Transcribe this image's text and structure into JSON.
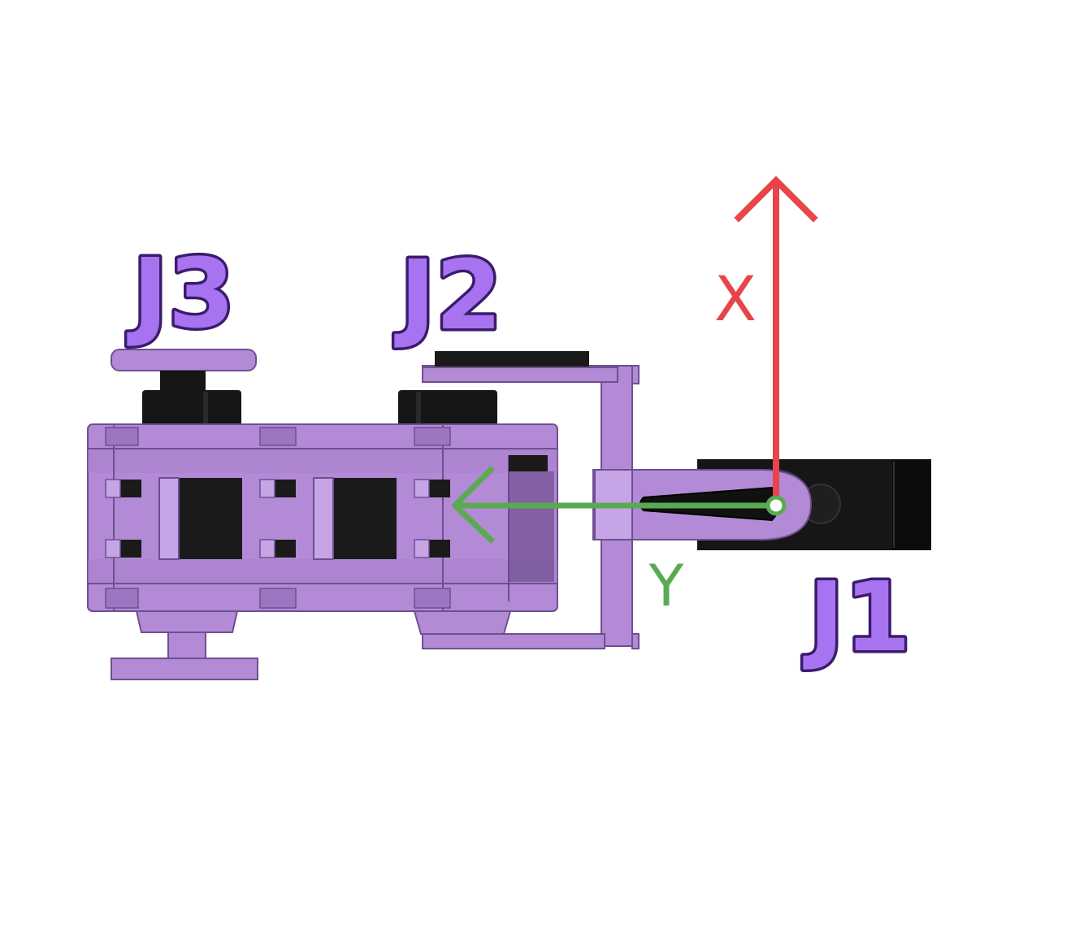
{
  "labels": {
    "j1": "J1",
    "j2": "J2",
    "j3": "J3"
  },
  "axes": {
    "x": {
      "label": "X",
      "color": "#e8444a"
    },
    "y": {
      "label": "Y",
      "color": "#5aaa52"
    }
  },
  "colors": {
    "part_fill": "#b28ad6",
    "part_light": "#c6a5e6",
    "part_edge": "#6f4f91",
    "servo_black": "#161616",
    "label_fill": "#a873f0",
    "label_outline": "#3a1c6b"
  }
}
